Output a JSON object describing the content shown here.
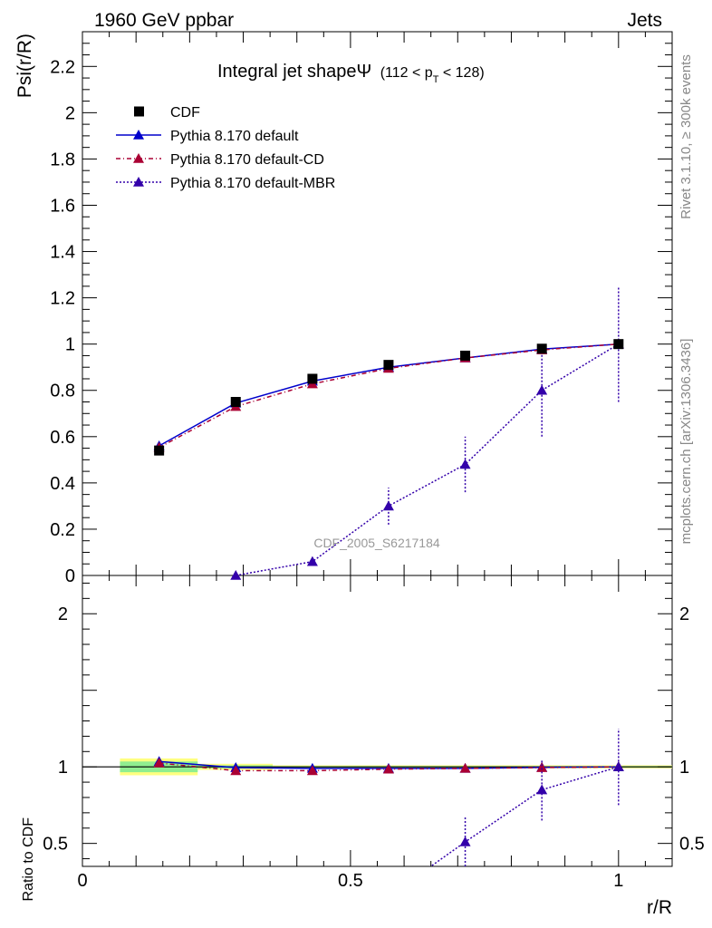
{
  "header": {
    "left": "1960 GeV ppbar",
    "right": "Jets"
  },
  "side_labels": {
    "rivet": "Rivet 3.1.10, ≥ 300k events",
    "mcplots": "mcplots.cern.ch [arXiv:1306.3436]"
  },
  "colors": {
    "cdf": "#000000",
    "default": "#0000cc",
    "default_cd": "#aa0033",
    "default_mbr": "#3300aa",
    "band_inner": "#90ee90",
    "band_outer": "#ffff80"
  },
  "chart_data": [
    {
      "type": "line",
      "title": "Integral jet shapeΨ",
      "title_suffix": "(112 < p",
      "title_sub": "T",
      "title_end": " < 128)",
      "ylabel": "Psi(r/R)",
      "watermark": "CDF_2005_S6217184",
      "xlim": [
        0,
        1.1
      ],
      "ylim": [
        0,
        2.35
      ],
      "yticks": [
        0,
        0.2,
        0.4,
        0.6,
        0.8,
        1,
        1.2,
        1.4,
        1.6,
        1.8,
        2,
        2.2
      ],
      "yticklabels": [
        "0",
        "0.2",
        "0.4",
        "0.6",
        "0.8",
        "1",
        "1.2",
        "1.4",
        "1.6",
        "1.8",
        "2",
        "2.2"
      ],
      "legend": [
        "CDF",
        "Pythia 8.170 default",
        "Pythia 8.170 default-CD",
        "Pythia 8.170 default-MBR"
      ],
      "series": [
        {
          "name": "CDF",
          "x": [
            0.143,
            0.286,
            0.429,
            0.571,
            0.714,
            0.857,
            1.0
          ],
          "values": [
            0.54,
            0.75,
            0.85,
            0.91,
            0.95,
            0.98,
            1.0
          ]
        },
        {
          "name": "Pythia 8.170 default",
          "x": [
            0.143,
            0.286,
            0.429,
            0.571,
            0.714,
            0.857,
            1.0
          ],
          "values": [
            0.56,
            0.745,
            0.84,
            0.9,
            0.94,
            0.978,
            1.0
          ]
        },
        {
          "name": "Pythia 8.170 default-CD",
          "x": [
            0.143,
            0.286,
            0.429,
            0.571,
            0.714,
            0.857,
            1.0
          ],
          "values": [
            0.553,
            0.73,
            0.828,
            0.895,
            0.94,
            0.975,
            1.0
          ]
        },
        {
          "name": "Pythia 8.170 default-MBR",
          "x": [
            0.286,
            0.429,
            0.571,
            0.714,
            0.857,
            1.0
          ],
          "values": [
            0.0,
            0.06,
            0.3,
            0.48,
            0.8,
            1.0
          ],
          "err": [
            0.0,
            0.0,
            0.08,
            0.12,
            0.2,
            0.25
          ]
        }
      ]
    },
    {
      "type": "line",
      "title": "",
      "xlabel": "r/R",
      "ylabel": "Ratio to CDF",
      "xlim": [
        0,
        1.1
      ],
      "ylim": [
        0.35,
        2.25
      ],
      "xticks": [
        0,
        0.5,
        1
      ],
      "xticklabels": [
        "0",
        "0.5",
        "1"
      ],
      "yticks": [
        0.5,
        1,
        2
      ],
      "yticklabels": [
        "0.5",
        "1",
        "2"
      ],
      "bands": [
        {
          "x0": 0.07,
          "x1": 0.215,
          "inner": [
            0.965,
            1.035
          ],
          "outer": [
            0.945,
            1.055
          ]
        },
        {
          "x0": 0.215,
          "x1": 0.355,
          "inner": [
            0.99,
            1.01
          ],
          "outer": [
            0.98,
            1.02
          ]
        },
        {
          "x0": 0.355,
          "x1": 1.1,
          "inner": [
            0.995,
            1.005
          ],
          "outer": [
            0.99,
            1.01
          ]
        }
      ],
      "series": [
        {
          "name": "Pythia 8.170 default",
          "x": [
            0.143,
            0.286,
            0.429,
            0.571,
            0.714,
            0.857,
            1.0
          ],
          "values": [
            1.035,
            0.995,
            0.99,
            0.99,
            0.99,
            0.997,
            1.0
          ]
        },
        {
          "name": "Pythia 8.170 default-CD",
          "x": [
            0.143,
            0.286,
            0.429,
            0.571,
            0.714,
            0.857,
            1.0
          ],
          "values": [
            1.025,
            0.975,
            0.975,
            0.985,
            0.99,
            0.995,
            1.0
          ]
        },
        {
          "name": "Pythia 8.170 default-MBR",
          "x": [
            0.63,
            0.714,
            0.857,
            1.0
          ],
          "values": [
            0.3,
            0.51,
            0.85,
            1.0
          ],
          "err": [
            0.0,
            0.16,
            0.2,
            0.25
          ]
        }
      ]
    }
  ]
}
